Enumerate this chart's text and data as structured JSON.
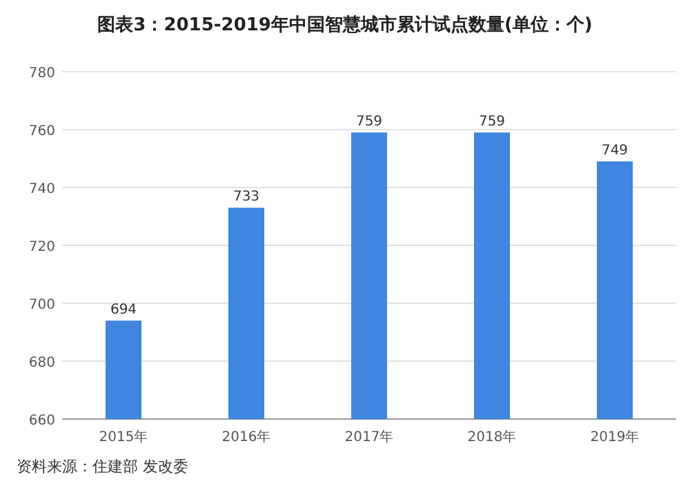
{
  "chart_data": {
    "type": "bar",
    "title": "图表3：2015-2019年中国智慧城市累计试点数量(单位：个)",
    "categories": [
      "2015年",
      "2016年",
      "2017年",
      "2018年",
      "2019年"
    ],
    "values": [
      694,
      733,
      759,
      759,
      749
    ],
    "color": "#3f86e0",
    "ylim": [
      660,
      780
    ],
    "yticks": [
      660,
      680,
      700,
      720,
      740,
      760,
      780
    ],
    "grid": "y",
    "data_labels": true,
    "annotations": [
      "资料来源：住建部 发改委"
    ]
  }
}
